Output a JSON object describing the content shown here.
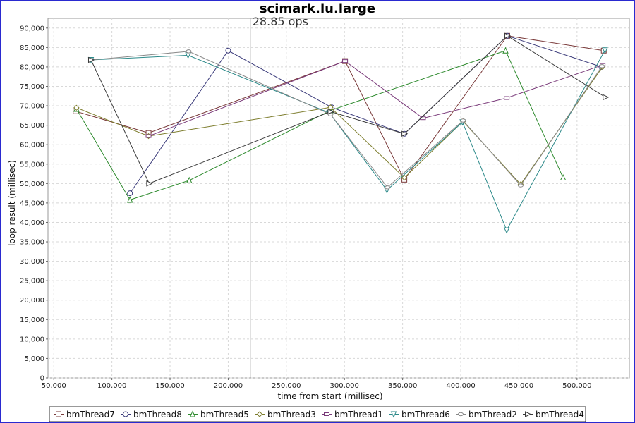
{
  "chart_data": {
    "type": "line",
    "title": "scimark.lu.large",
    "xlabel": "time from start (millisec)",
    "ylabel": "loop result (millisec)",
    "xlim": [
      45000,
      545000
    ],
    "ylim": [
      0,
      92500
    ],
    "x_ticks": [
      50000,
      100000,
      150000,
      200000,
      250000,
      300000,
      350000,
      400000,
      450000,
      500000
    ],
    "x_tick_labels": [
      "50,000",
      "100,000",
      "150,000",
      "200,000",
      "250,000",
      "300,000",
      "350,000",
      "400,000",
      "450,000",
      "500,000"
    ],
    "y_ticks": [
      0,
      5000,
      10000,
      15000,
      20000,
      25000,
      30000,
      35000,
      40000,
      45000,
      50000,
      55000,
      60000,
      65000,
      70000,
      75000,
      80000,
      85000,
      90000
    ],
    "y_tick_labels": [
      "0",
      "5,000",
      "10,000",
      "15,000",
      "20,000",
      "25,000",
      "30,000",
      "35,000",
      "40,000",
      "45,000",
      "50,000",
      "55,000",
      "60,000",
      "65,000",
      "70,000",
      "75,000",
      "80,000",
      "85,000",
      "90,000"
    ],
    "grid": true,
    "legend_position": "bottom",
    "marker_line": {
      "x": 219000,
      "label": "28.85 ops"
    },
    "series": [
      {
        "name": "bmThread7",
        "color": "#7a3a3a",
        "marker": "square",
        "x": [
          68800,
          131500,
          300500,
          351500,
          440000,
          523000
        ],
        "y": [
          68600,
          63000,
          81500,
          51000,
          88000,
          84200
        ]
      },
      {
        "name": "bmThread8",
        "color": "#3a3a7a",
        "marker": "circle",
        "x": [
          115500,
          200000,
          289000,
          351500,
          440000,
          521000
        ],
        "y": [
          47500,
          84200,
          69600,
          62800,
          88000,
          80000
        ]
      },
      {
        "name": "bmThread5",
        "color": "#2d8a2d",
        "marker": "triangle-up",
        "x": [
          69500,
          115500,
          166500,
          288000,
          438500,
          488000
        ],
        "y": [
          69200,
          45800,
          50800,
          68800,
          84200,
          51500
        ]
      },
      {
        "name": "bmThread3",
        "color": "#7d7d2d",
        "marker": "diamond",
        "x": [
          69500,
          131500,
          288000,
          351500,
          402000,
          451500,
          522000
        ],
        "y": [
          69500,
          62200,
          69600,
          51500,
          66000,
          49800,
          80000
        ]
      },
      {
        "name": "bmThread1",
        "color": "#7a3a7a",
        "marker": "rect-h",
        "x": [
          131500,
          300500,
          367500,
          439500,
          522000
        ],
        "y": [
          62200,
          81500,
          66800,
          72000,
          80500
        ]
      },
      {
        "name": "bmThread6",
        "color": "#2d8a8a",
        "marker": "triangle-down",
        "x": [
          82000,
          165500,
          287000,
          336500,
          401500,
          439500,
          524000
        ],
        "y": [
          81800,
          83000,
          68200,
          48300,
          65800,
          38000,
          84300
        ]
      },
      {
        "name": "bmThread2",
        "color": "#888888",
        "marker": "ellipse",
        "x": [
          82000,
          166000,
          288000,
          337000,
          402000,
          451500,
          521500
        ],
        "y": [
          81800,
          84000,
          67800,
          49000,
          66200,
          49500,
          80200
        ]
      },
      {
        "name": "bmThread4",
        "color": "#3a3a3a",
        "marker": "triangle-right",
        "x": [
          82000,
          132000,
          288000,
          351500,
          440000,
          524500
        ],
        "y": [
          81800,
          50000,
          68500,
          62800,
          88000,
          72200
        ]
      }
    ]
  }
}
